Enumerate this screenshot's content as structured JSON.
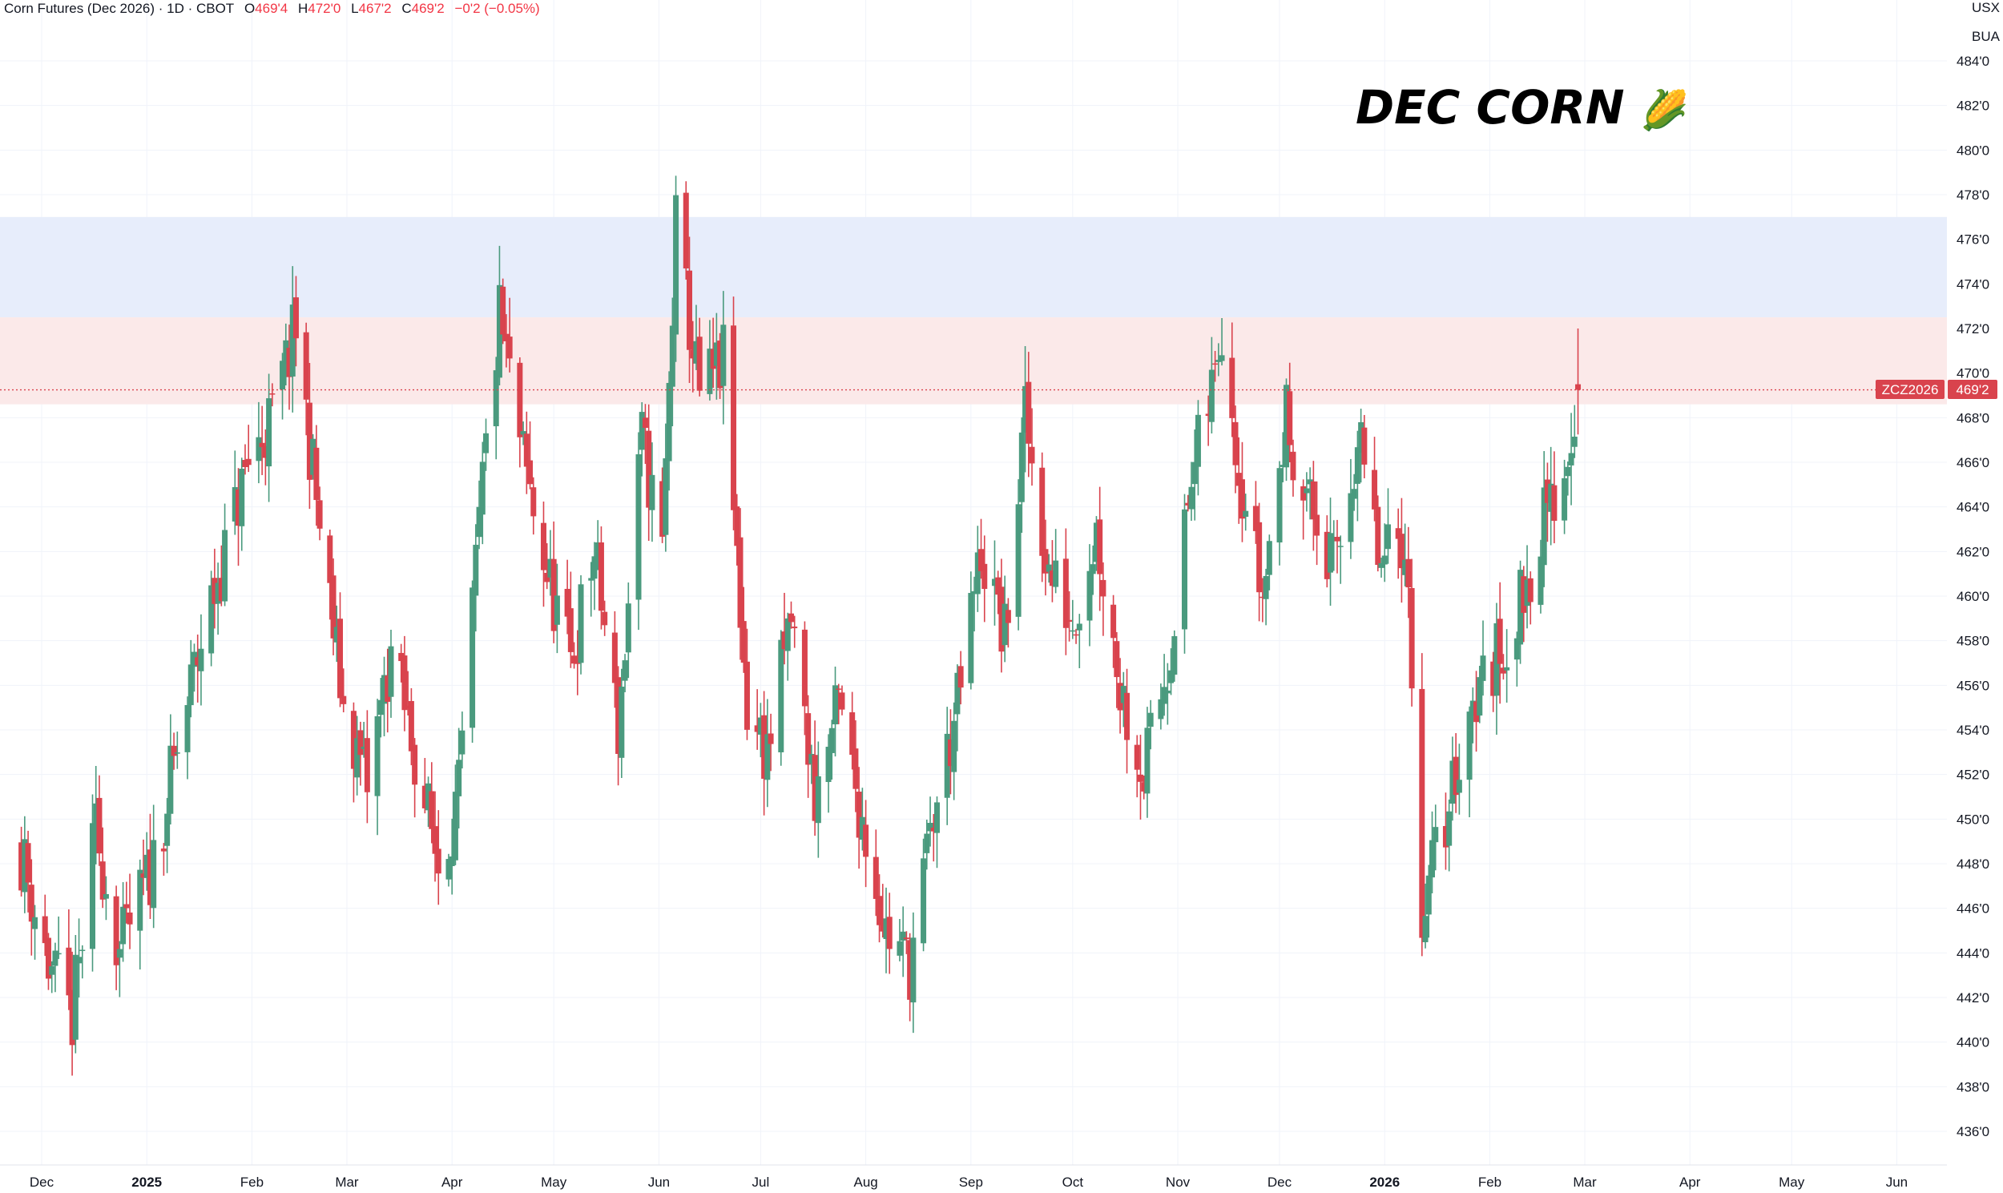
{
  "header": {
    "symbol_title": "Corn Futures (Dec 2026) · 1D · CBOT",
    "open_label": "O",
    "open_value": "469'4",
    "high_label": "H",
    "high_value": "472'0",
    "low_label": "L",
    "low_value": "467'2",
    "close_label": "C",
    "close_value": "469'2",
    "change": "−0'2 (−0.05%)"
  },
  "units": {
    "currency": "USX",
    "unit": "BUA"
  },
  "watermark": {
    "text": "DEC CORN",
    "icon": "corn-emoji"
  },
  "price_tag": {
    "symbol": "ZCZ2026",
    "value": "469'2"
  },
  "colors": {
    "up": "#4a9a7e",
    "down": "#d9434d",
    "upper_zone": "#e7edfb",
    "lower_zone": "#fbe9e9",
    "grid": "#f0f3fa"
  },
  "chart_data": {
    "type": "candlestick",
    "title": "Corn Futures (Dec 2026)",
    "interval": "1D",
    "exchange": "CBOT",
    "yaxis_ticks": [
      "484'0",
      "482'0",
      "480'0",
      "478'0",
      "476'0",
      "474'0",
      "472'0",
      "470'0",
      "468'0",
      "466'0",
      "464'0",
      "462'0",
      "460'0",
      "458'0",
      "456'0",
      "454'0",
      "452'0",
      "450'0",
      "448'0",
      "446'0",
      "444'0",
      "442'0",
      "440'0",
      "438'0",
      "436'0"
    ],
    "ylim": [
      434.5,
      486
    ],
    "xaxis_ticks": [
      {
        "label": "Dec",
        "bold": false
      },
      {
        "label": "2025",
        "bold": true
      },
      {
        "label": "Feb",
        "bold": false
      },
      {
        "label": "Mar",
        "bold": false
      },
      {
        "label": "Apr",
        "bold": false
      },
      {
        "label": "May",
        "bold": false
      },
      {
        "label": "Jun",
        "bold": false
      },
      {
        "label": "Jul",
        "bold": false
      },
      {
        "label": "Aug",
        "bold": false
      },
      {
        "label": "Sep",
        "bold": false
      },
      {
        "label": "Oct",
        "bold": false
      },
      {
        "label": "Nov",
        "bold": false
      },
      {
        "label": "Dec",
        "bold": false
      },
      {
        "label": "2026",
        "bold": true
      },
      {
        "label": "Feb",
        "bold": false
      },
      {
        "label": "Mar",
        "bold": false
      },
      {
        "label": "Apr",
        "bold": false
      },
      {
        "label": "May",
        "bold": false
      },
      {
        "label": "Jun",
        "bold": false
      }
    ],
    "zones": [
      {
        "name": "resistance-upper",
        "from": 472.5,
        "to": 477.0
      },
      {
        "name": "resistance-lower",
        "from": 468.6,
        "to": 472.5
      }
    ],
    "last_price": 469.25,
    "close_path": [
      {
        "date": "2024-11-25",
        "close": 448.5
      },
      {
        "date": "2024-12-03",
        "close": 443.5
      },
      {
        "date": "2024-12-10",
        "close": 441.0
      },
      {
        "date": "2024-12-17",
        "close": 449.5
      },
      {
        "date": "2024-12-24",
        "close": 444.0
      },
      {
        "date": "2025-01-02",
        "close": 447.5
      },
      {
        "date": "2025-01-10",
        "close": 453.0
      },
      {
        "date": "2025-01-17",
        "close": 458.0
      },
      {
        "date": "2025-01-24",
        "close": 462.0
      },
      {
        "date": "2025-01-31",
        "close": 466.0
      },
      {
        "date": "2025-02-07",
        "close": 468.0
      },
      {
        "date": "2025-02-14",
        "close": 472.0
      },
      {
        "date": "2025-02-21",
        "close": 463.0
      },
      {
        "date": "2025-02-28",
        "close": 455.0
      },
      {
        "date": "2025-03-07",
        "close": 451.5
      },
      {
        "date": "2025-03-14",
        "close": 457.5
      },
      {
        "date": "2025-03-21",
        "close": 453.0
      },
      {
        "date": "2025-03-28",
        "close": 448.0
      },
      {
        "date": "2025-04-03",
        "close": 451.0
      },
      {
        "date": "2025-04-10",
        "close": 465.0
      },
      {
        "date": "2025-04-15",
        "close": 472.5
      },
      {
        "date": "2025-04-22",
        "close": 466.0
      },
      {
        "date": "2025-04-29",
        "close": 461.0
      },
      {
        "date": "2025-05-06",
        "close": 457.0
      },
      {
        "date": "2025-05-13",
        "close": 462.0
      },
      {
        "date": "2025-05-20",
        "close": 454.0
      },
      {
        "date": "2025-05-27",
        "close": 467.0
      },
      {
        "date": "2025-06-02",
        "close": 462.0
      },
      {
        "date": "2025-06-06",
        "close": 476.5
      },
      {
        "date": "2025-06-13",
        "close": 469.0
      },
      {
        "date": "2025-06-20",
        "close": 470.5
      },
      {
        "date": "2025-06-27",
        "close": 455.0
      },
      {
        "date": "2025-07-03",
        "close": 453.0
      },
      {
        "date": "2025-07-10",
        "close": 459.0
      },
      {
        "date": "2025-07-17",
        "close": 451.0
      },
      {
        "date": "2025-07-24",
        "close": 455.0
      },
      {
        "date": "2025-07-31",
        "close": 450.0
      },
      {
        "date": "2025-08-07",
        "close": 445.0
      },
      {
        "date": "2025-08-14",
        "close": 443.5
      },
      {
        "date": "2025-08-21",
        "close": 450.0
      },
      {
        "date": "2025-08-28",
        "close": 455.0
      },
      {
        "date": "2025-09-04",
        "close": 462.0
      },
      {
        "date": "2025-09-11",
        "close": 458.0
      },
      {
        "date": "2025-09-17",
        "close": 468.0
      },
      {
        "date": "2025-09-24",
        "close": 461.0
      },
      {
        "date": "2025-10-01",
        "close": 459.0
      },
      {
        "date": "2025-10-08",
        "close": 463.0
      },
      {
        "date": "2025-10-15",
        "close": 456.0
      },
      {
        "date": "2025-10-22",
        "close": 452.0
      },
      {
        "date": "2025-10-29",
        "close": 457.0
      },
      {
        "date": "2025-11-05",
        "close": 465.0
      },
      {
        "date": "2025-11-12",
        "close": 470.0
      },
      {
        "date": "2025-11-14",
        "close": 472.5
      },
      {
        "date": "2025-11-19",
        "close": 466.0
      },
      {
        "date": "2025-11-26",
        "close": 460.0
      },
      {
        "date": "2025-12-03",
        "close": 468.0
      },
      {
        "date": "2025-12-10",
        "close": 464.0
      },
      {
        "date": "2025-12-17",
        "close": 461.0
      },
      {
        "date": "2025-12-24",
        "close": 467.0
      },
      {
        "date": "2025-12-31",
        "close": 461.0
      },
      {
        "date": "2026-01-07",
        "close": 463.0
      },
      {
        "date": "2026-01-12",
        "close": 446.0
      },
      {
        "date": "2026-01-19",
        "close": 450.0
      },
      {
        "date": "2026-01-26",
        "close": 455.0
      },
      {
        "date": "2026-02-02",
        "close": 457.0
      },
      {
        "date": "2026-02-09",
        "close": 459.0
      },
      {
        "date": "2026-02-16",
        "close": 463.0
      },
      {
        "date": "2026-02-23",
        "close": 465.5
      },
      {
        "date": "2026-02-27",
        "close": 469.25
      }
    ],
    "last_candle": {
      "open": 469.5,
      "high": 472.0,
      "low": 467.25,
      "close": 469.25
    }
  }
}
